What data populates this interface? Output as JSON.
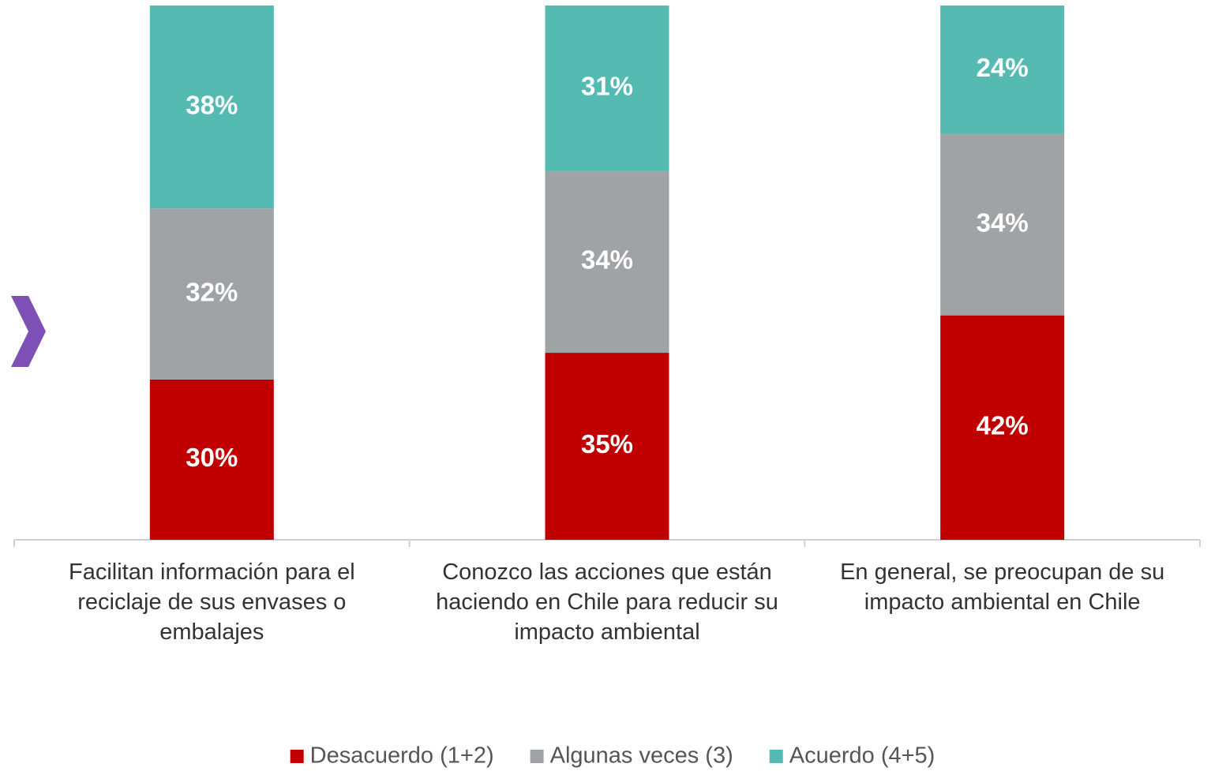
{
  "chart_data": {
    "type": "stacked_bar",
    "categories": [
      "Facilitan información para el reciclaje de sus envases o embalajes",
      "Conozco las acciones que están haciendo en Chile para reducir su impacto ambiental",
      "En general, se preocupan de su impacto ambiental en Chile"
    ],
    "series": [
      {
        "name": "Desacuerdo (1+2)",
        "color": "#c00000",
        "values": [
          30,
          35,
          42
        ],
        "value_labels": [
          "30%",
          "35%",
          "42%"
        ]
      },
      {
        "name": "Algunas veces (3)",
        "color": "#a0a3a6",
        "values": [
          32,
          34,
          34
        ],
        "value_labels": [
          "32%",
          "34%",
          "34%"
        ]
      },
      {
        "name": "Acuerdo (4+5)",
        "color": "#55bab2",
        "values": [
          38,
          31,
          24
        ],
        "value_labels": [
          "38%",
          "31%",
          "24%"
        ]
      }
    ],
    "legend": "bottom"
  }
}
